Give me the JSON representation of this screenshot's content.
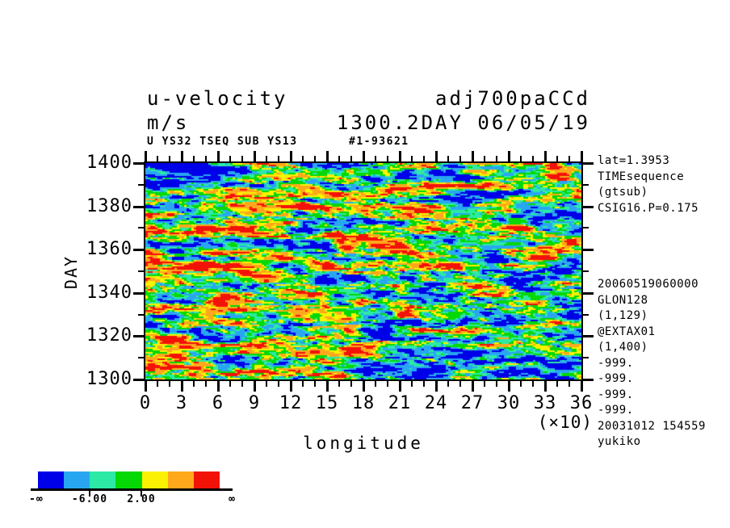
{
  "header": {
    "title_left_line1": "u-velocity",
    "title_left_line2": "m/s",
    "title_right_line1": "adj700paCCd",
    "title_right_line2": "1300.2DAY 06/05/19",
    "meta_left": "U YS32 TSEQ SUB YS13",
    "meta_right": "#1-93621"
  },
  "chart_data": {
    "type": "heatmap",
    "xlabel": "longitude",
    "x_multiplier_note": "(×10)",
    "xlim": [
      0,
      36
    ],
    "xticks": [
      0,
      3,
      6,
      9,
      12,
      15,
      18,
      21,
      24,
      27,
      30,
      33,
      36
    ],
    "x_minor_step": 1,
    "ylabel": "DAY",
    "ylim": [
      1300,
      1400
    ],
    "yticks": [
      1400,
      1380,
      1360,
      1340,
      1320,
      1300
    ],
    "y_minor_step": 10,
    "grid": false,
    "legend_position": "bottom-left colorbar",
    "colorbar": {
      "palette": [
        "#0000e8",
        "#29a6f2",
        "#2ceaa6",
        "#06d806",
        "#faf202",
        "#ffa81c",
        "#f31208"
      ],
      "label_left_end": "-∞",
      "label_tick1": "-6.00",
      "label_tick2": "2.00",
      "label_right_end": "∞"
    }
  },
  "annotations_right": {
    "top": [
      "lat=1.3953",
      "TIMEsequence",
      "(gtsub)",
      "CSIG16.P=0.175"
    ],
    "bottom": [
      "20060519060000",
      "GLON128",
      "(1,129)",
      "@EXTAX01",
      "(1,400)",
      "-999.",
      "-999.",
      "-999.",
      "-999.",
      "20031012 154559",
      "yukiko"
    ]
  }
}
